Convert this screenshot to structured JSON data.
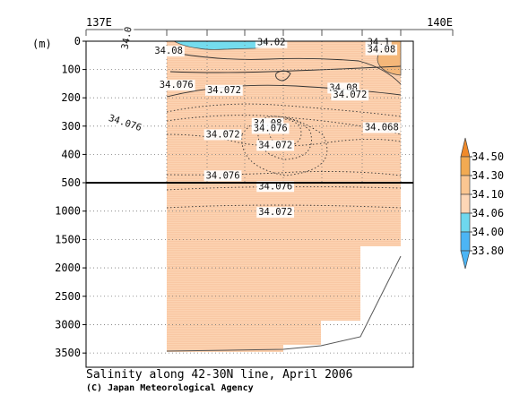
{
  "chart_data": {
    "type": "heatmap",
    "title": "Salinity along 42-30N line, April 2006",
    "credit": "(C) Japan Meteorological Agency",
    "x_ticks": [
      {
        "label": "137E",
        "lon": 137
      },
      {
        "label": "140E",
        "lon": 140
      }
    ],
    "x_extent": [
      137,
      140
    ],
    "ylabel": "(m)",
    "y_upper": {
      "range": [
        0,
        500
      ],
      "ticks": [
        0,
        100,
        200,
        300,
        400,
        500
      ]
    },
    "y_lower": {
      "range": [
        500,
        3750
      ],
      "ticks": [
        1000,
        1500,
        2000,
        2500,
        3000,
        3500
      ]
    },
    "gridlines": "dotted",
    "colorbar": {
      "levels": [
        33.8,
        34.0,
        34.06,
        34.1,
        34.3,
        34.5
      ],
      "labels": [
        "34.50",
        "34.30",
        "34.10",
        "34.06",
        "34.00",
        "33.80"
      ],
      "colors": [
        "#4cb5f5",
        "#6ed8ee",
        "#fdd6b6",
        "#fbc691",
        "#f2aa52",
        "#f08a2a"
      ]
    },
    "contour_labels": [
      {
        "text": "34.0",
        "lon": 137.34,
        "depth": 30,
        "rotate": -80
      },
      {
        "text": "34.08",
        "lon": 137.56,
        "depth": 45
      },
      {
        "text": "34.02",
        "lon": 138.4,
        "depth": 15
      },
      {
        "text": "34.1",
        "lon": 139.3,
        "depth": 15
      },
      {
        "text": "34.08",
        "lon": 139.3,
        "depth": 40
      },
      {
        "text": "34.076",
        "lon": 137.6,
        "depth": 165
      },
      {
        "text": "34.072",
        "lon": 137.99,
        "depth": 183
      },
      {
        "text": "34.08",
        "lon": 138.99,
        "depth": 175
      },
      {
        "text": "34.072",
        "lon": 139.02,
        "depth": 200
      },
      {
        "text": "34.076",
        "lon": 137.18,
        "depth": 280,
        "rotate": 18
      },
      {
        "text": "34.08",
        "lon": 138.37,
        "depth": 300
      },
      {
        "text": "34.076",
        "lon": 138.37,
        "depth": 318
      },
      {
        "text": "34.068",
        "lon": 139.28,
        "depth": 315
      },
      {
        "text": "34.072",
        "lon": 137.98,
        "depth": 340
      },
      {
        "text": "34.072",
        "lon": 138.41,
        "depth": 378
      },
      {
        "text": "34.076",
        "lon": 137.98,
        "depth": 485
      },
      {
        "text": "34.076",
        "lon": 138.41,
        "depth": 615
      },
      {
        "text": "34.072",
        "lon": 138.41,
        "depth": 1070
      }
    ]
  }
}
